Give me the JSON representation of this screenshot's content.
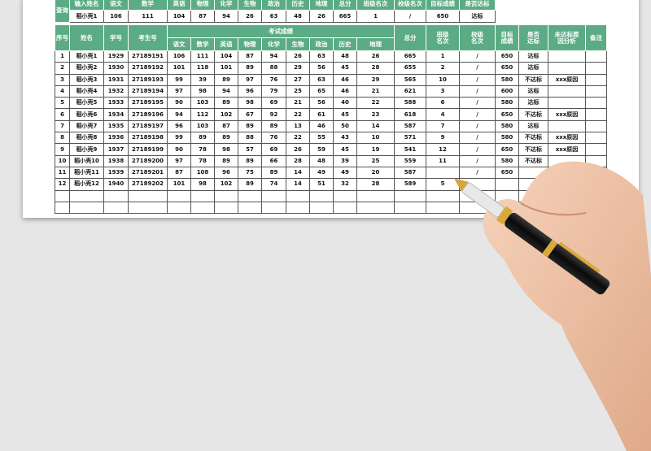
{
  "query": {
    "label": "查询",
    "headers": [
      "输入姓名",
      "语文",
      "数学",
      "英语",
      "物理",
      "化学",
      "生物",
      "政治",
      "历史",
      "地理",
      "总分",
      "班级名次",
      "校级名次",
      "目标成绩",
      "是否达标"
    ],
    "values": [
      "稻小壳1",
      "106",
      "111",
      "104",
      "87",
      "94",
      "26",
      "63",
      "48",
      "26",
      "665",
      "1",
      "/",
      "650",
      "达标"
    ]
  },
  "main": {
    "headers": {
      "index": "序号",
      "name": "姓名",
      "student_id": "学号",
      "exam_id": "考生号",
      "scores_group": "考试成绩",
      "subjects": [
        "语文",
        "数学",
        "英语",
        "物理",
        "化学",
        "生物",
        "政治",
        "历史",
        "地理"
      ],
      "total": "总分",
      "class_rank": "班级名次",
      "school_rank": "校级名次",
      "target": "目标成绩",
      "met": "是否达标",
      "reason": "未达标原因分析",
      "note": "备注"
    },
    "rows": [
      [
        "1",
        "稻小壳1",
        "1929",
        "27189191",
        "106",
        "111",
        "104",
        "87",
        "94",
        "26",
        "63",
        "48",
        "26",
        "665",
        "1",
        "/",
        "650",
        "达标",
        "",
        ""
      ],
      [
        "2",
        "稻小壳2",
        "1930",
        "27189192",
        "101",
        "118",
        "101",
        "89",
        "88",
        "29",
        "56",
        "45",
        "28",
        "655",
        "2",
        "/",
        "650",
        "达标",
        "",
        ""
      ],
      [
        "3",
        "稻小壳3",
        "1931",
        "27189193",
        "99",
        "39",
        "89",
        "97",
        "76",
        "27",
        "63",
        "46",
        "29",
        "565",
        "10",
        "/",
        "580",
        "不达标",
        "xxx原因",
        ""
      ],
      [
        "4",
        "稻小壳4",
        "1932",
        "27189194",
        "97",
        "98",
        "94",
        "96",
        "79",
        "25",
        "65",
        "46",
        "21",
        "621",
        "3",
        "/",
        "600",
        "达标",
        "",
        ""
      ],
      [
        "5",
        "稻小壳5",
        "1933",
        "27189195",
        "90",
        "103",
        "89",
        "98",
        "69",
        "21",
        "56",
        "40",
        "22",
        "588",
        "6",
        "/",
        "580",
        "达标",
        "",
        ""
      ],
      [
        "6",
        "稻小壳6",
        "1934",
        "27189196",
        "94",
        "112",
        "102",
        "67",
        "92",
        "22",
        "61",
        "45",
        "23",
        "618",
        "4",
        "/",
        "650",
        "不达标",
        "xxx原因",
        ""
      ],
      [
        "7",
        "稻小壳7",
        "1935",
        "27189197",
        "96",
        "103",
        "87",
        "89",
        "89",
        "13",
        "46",
        "50",
        "14",
        "587",
        "7",
        "/",
        "580",
        "达标",
        "",
        ""
      ],
      [
        "8",
        "稻小壳8",
        "1936",
        "27189198",
        "99",
        "89",
        "89",
        "88",
        "76",
        "22",
        "55",
        "43",
        "10",
        "571",
        "9",
        "/",
        "580",
        "不达标",
        "xxx原因",
        ""
      ],
      [
        "9",
        "稻小壳9",
        "1937",
        "27189199",
        "90",
        "78",
        "98",
        "57",
        "69",
        "26",
        "59",
        "45",
        "19",
        "541",
        "12",
        "/",
        "650",
        "不达标",
        "xxx原因",
        ""
      ],
      [
        "10",
        "稻小壳10",
        "1938",
        "27189200",
        "97",
        "78",
        "89",
        "89",
        "66",
        "28",
        "48",
        "39",
        "25",
        "559",
        "11",
        "/",
        "580",
        "不达标",
        "",
        ""
      ],
      [
        "11",
        "稻小壳11",
        "1939",
        "27189201",
        "87",
        "108",
        "96",
        "75",
        "89",
        "14",
        "49",
        "49",
        "20",
        "587",
        "",
        "/",
        "650",
        "",
        "",
        ""
      ],
      [
        "12",
        "稻小壳12",
        "1940",
        "27189202",
        "101",
        "98",
        "102",
        "89",
        "74",
        "14",
        "51",
        "32",
        "28",
        "589",
        "5",
        "",
        "",
        "",
        "",
        ""
      ],
      [
        "",
        "",
        "",
        "",
        "",
        "",
        "",
        "",
        "",
        "",
        "",
        "",
        "",
        "",
        "",
        "",
        "",
        "",
        "",
        ""
      ],
      [
        "",
        "",
        "",
        "",
        "",
        "",
        "",
        "",
        "",
        "",
        "",
        "",
        "",
        "",
        "",
        "",
        "",
        "",
        "",
        ""
      ]
    ]
  },
  "colors": {
    "header_green": "#5bab84",
    "background": "#e6e6e6"
  }
}
